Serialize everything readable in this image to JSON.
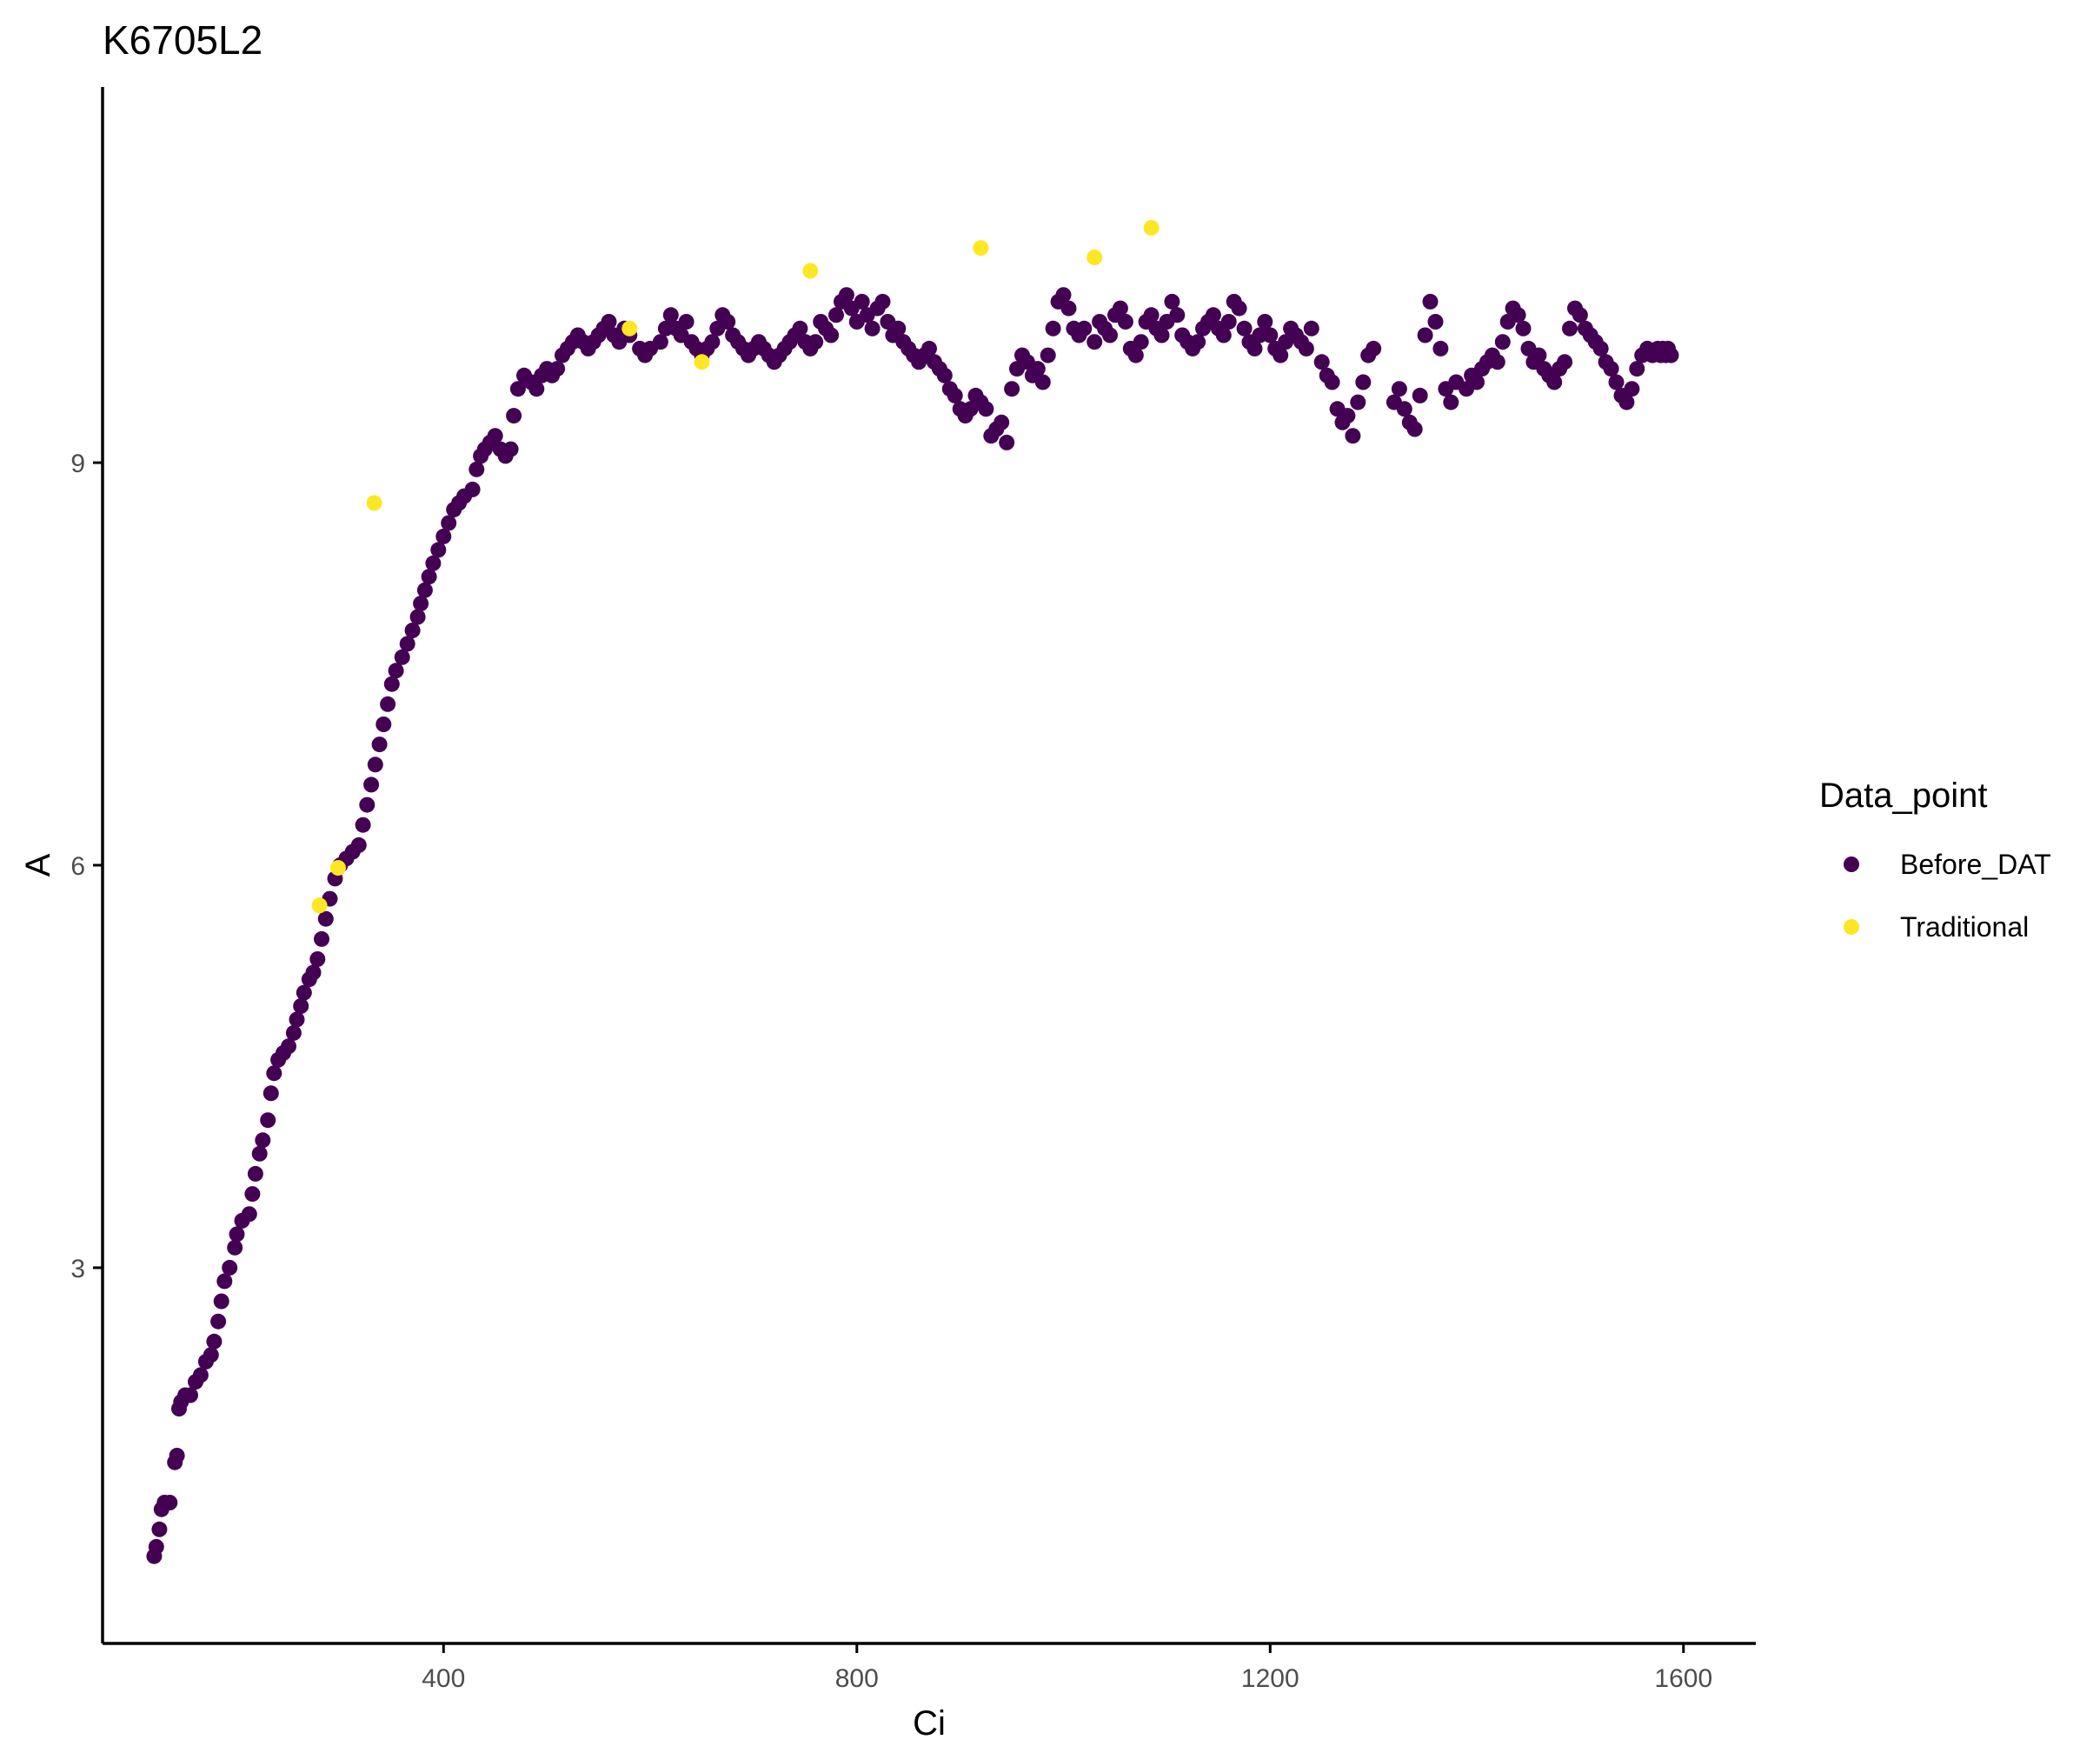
{
  "chart_data": {
    "type": "scatter",
    "title": "K6705L2",
    "xlabel": "Ci",
    "ylabel": "A",
    "xlim": [
      70,
      1670
    ],
    "ylim": [
      0.2,
      11.8
    ],
    "xticks": [
      400,
      800,
      1200,
      1600
    ],
    "yticks": [
      3,
      6,
      9
    ],
    "grid": false,
    "legend": {
      "title": "Data_point",
      "position": "right"
    },
    "series": [
      {
        "name": "Before_DAT",
        "color": "#440154",
        "points": [
          [
            120,
            0.85
          ],
          [
            122,
            0.92
          ],
          [
            125,
            1.05
          ],
          [
            127,
            1.2
          ],
          [
            130,
            1.25
          ],
          [
            135,
            1.25
          ],
          [
            140,
            1.55
          ],
          [
            142,
            1.6
          ],
          [
            144,
            1.95
          ],
          [
            146,
            2.0
          ],
          [
            150,
            2.05
          ],
          [
            155,
            2.05
          ],
          [
            160,
            2.15
          ],
          [
            165,
            2.2
          ],
          [
            170,
            2.3
          ],
          [
            175,
            2.35
          ],
          [
            178,
            2.45
          ],
          [
            182,
            2.6
          ],
          [
            185,
            2.75
          ],
          [
            188,
            2.9
          ],
          [
            193,
            3.0
          ],
          [
            198,
            3.15
          ],
          [
            200,
            3.25
          ],
          [
            205,
            3.35
          ],
          [
            212,
            3.4
          ],
          [
            215,
            3.55
          ],
          [
            218,
            3.7
          ],
          [
            222,
            3.85
          ],
          [
            225,
            3.95
          ],
          [
            230,
            4.1
          ],
          [
            233,
            4.3
          ],
          [
            236,
            4.45
          ],
          [
            240,
            4.55
          ],
          [
            245,
            4.6
          ],
          [
            250,
            4.65
          ],
          [
            255,
            4.75
          ],
          [
            258,
            4.85
          ],
          [
            262,
            4.95
          ],
          [
            265,
            5.05
          ],
          [
            270,
            5.15
          ],
          [
            274,
            5.2
          ],
          [
            278,
            5.3
          ],
          [
            282,
            5.45
          ],
          [
            286,
            5.6
          ],
          [
            290,
            5.75
          ],
          [
            295,
            5.9
          ],
          [
            300,
            6.0
          ],
          [
            306,
            6.05
          ],
          [
            312,
            6.1
          ],
          [
            318,
            6.15
          ],
          [
            322,
            6.3
          ],
          [
            326,
            6.45
          ],
          [
            330,
            6.6
          ],
          [
            334,
            6.75
          ],
          [
            338,
            6.9
          ],
          [
            342,
            7.05
          ],
          [
            346,
            7.2
          ],
          [
            350,
            7.35
          ],
          [
            354,
            7.45
          ],
          [
            360,
            7.55
          ],
          [
            365,
            7.65
          ],
          [
            370,
            7.75
          ],
          [
            375,
            7.85
          ],
          [
            378,
            7.95
          ],
          [
            382,
            8.05
          ],
          [
            386,
            8.15
          ],
          [
            390,
            8.25
          ],
          [
            395,
            8.35
          ],
          [
            400,
            8.45
          ],
          [
            405,
            8.55
          ],
          [
            410,
            8.65
          ],
          [
            415,
            8.7
          ],
          [
            420,
            8.75
          ],
          [
            428,
            8.8
          ],
          [
            432,
            8.95
          ],
          [
            436,
            9.05
          ],
          [
            440,
            9.1
          ],
          [
            445,
            9.15
          ],
          [
            450,
            9.2
          ],
          [
            455,
            9.1
          ],
          [
            460,
            9.05
          ],
          [
            465,
            9.1
          ],
          [
            468,
            9.35
          ],
          [
            472,
            9.55
          ],
          [
            478,
            9.65
          ],
          [
            485,
            9.6
          ],
          [
            490,
            9.55
          ],
          [
            495,
            9.65
          ],
          [
            500,
            9.7
          ],
          [
            505,
            9.65
          ],
          [
            510,
            9.7
          ],
          [
            515,
            9.8
          ],
          [
            520,
            9.85
          ],
          [
            525,
            9.9
          ],
          [
            530,
            9.95
          ],
          [
            535,
            9.9
          ],
          [
            540,
            9.85
          ],
          [
            545,
            9.9
          ],
          [
            550,
            9.95
          ],
          [
            555,
            10.0
          ],
          [
            560,
            10.05
          ],
          [
            565,
            9.95
          ],
          [
            570,
            9.9
          ],
          [
            575,
            10.0
          ],
          [
            580,
            9.95
          ],
          [
            590,
            9.85
          ],
          [
            595,
            9.8
          ],
          [
            600,
            9.85
          ],
          [
            610,
            9.9
          ],
          [
            615,
            10.0
          ],
          [
            620,
            10.1
          ],
          [
            625,
            10.0
          ],
          [
            630,
            9.95
          ],
          [
            635,
            10.05
          ],
          [
            640,
            9.9
          ],
          [
            645,
            9.85
          ],
          [
            650,
            9.8
          ],
          [
            655,
            9.85
          ],
          [
            660,
            9.9
          ],
          [
            665,
            10.0
          ],
          [
            670,
            10.1
          ],
          [
            675,
            10.05
          ],
          [
            680,
            9.95
          ],
          [
            685,
            9.9
          ],
          [
            690,
            9.85
          ],
          [
            695,
            9.8
          ],
          [
            700,
            9.85
          ],
          [
            705,
            9.9
          ],
          [
            710,
            9.85
          ],
          [
            715,
            9.8
          ],
          [
            720,
            9.75
          ],
          [
            725,
            9.8
          ],
          [
            730,
            9.85
          ],
          [
            735,
            9.9
          ],
          [
            740,
            9.95
          ],
          [
            745,
            10.0
          ],
          [
            750,
            9.9
          ],
          [
            755,
            9.85
          ],
          [
            760,
            9.9
          ],
          [
            765,
            10.05
          ],
          [
            770,
            10.0
          ],
          [
            775,
            9.95
          ],
          [
            780,
            10.1
          ],
          [
            785,
            10.2
          ],
          [
            790,
            10.25
          ],
          [
            795,
            10.15
          ],
          [
            800,
            10.05
          ],
          [
            805,
            10.2
          ],
          [
            810,
            10.1
          ],
          [
            815,
            10.0
          ],
          [
            820,
            10.15
          ],
          [
            825,
            10.2
          ],
          [
            830,
            10.05
          ],
          [
            835,
            9.95
          ],
          [
            840,
            10.0
          ],
          [
            845,
            9.9
          ],
          [
            850,
            9.85
          ],
          [
            855,
            9.8
          ],
          [
            860,
            9.75
          ],
          [
            865,
            9.8
          ],
          [
            870,
            9.85
          ],
          [
            875,
            9.75
          ],
          [
            880,
            9.7
          ],
          [
            885,
            9.65
          ],
          [
            890,
            9.55
          ],
          [
            895,
            9.5
          ],
          [
            900,
            9.4
          ],
          [
            905,
            9.35
          ],
          [
            910,
            9.4
          ],
          [
            915,
            9.5
          ],
          [
            920,
            9.45
          ],
          [
            925,
            9.4
          ],
          [
            930,
            9.2
          ],
          [
            935,
            9.25
          ],
          [
            940,
            9.3
          ],
          [
            945,
            9.15
          ],
          [
            950,
            9.55
          ],
          [
            955,
            9.7
          ],
          [
            960,
            9.8
          ],
          [
            965,
            9.75
          ],
          [
            970,
            9.65
          ],
          [
            975,
            9.7
          ],
          [
            980,
            9.6
          ],
          [
            985,
            9.8
          ],
          [
            990,
            10.0
          ],
          [
            995,
            10.2
          ],
          [
            1000,
            10.25
          ],
          [
            1005,
            10.15
          ],
          [
            1010,
            10.0
          ],
          [
            1015,
            9.95
          ],
          [
            1020,
            10.0
          ],
          [
            1030,
            9.9
          ],
          [
            1035,
            10.05
          ],
          [
            1040,
            10.0
          ],
          [
            1045,
            9.95
          ],
          [
            1050,
            10.1
          ],
          [
            1055,
            10.15
          ],
          [
            1060,
            10.05
          ],
          [
            1065,
            9.85
          ],
          [
            1070,
            9.8
          ],
          [
            1075,
            9.9
          ],
          [
            1080,
            10.05
          ],
          [
            1085,
            10.1
          ],
          [
            1090,
            10.0
          ],
          [
            1095,
            9.95
          ],
          [
            1100,
            10.05
          ],
          [
            1105,
            10.2
          ],
          [
            1110,
            10.1
          ],
          [
            1115,
            9.95
          ],
          [
            1120,
            9.9
          ],
          [
            1125,
            9.85
          ],
          [
            1130,
            9.9
          ],
          [
            1135,
            10.0
          ],
          [
            1140,
            10.05
          ],
          [
            1145,
            10.1
          ],
          [
            1150,
            10.0
          ],
          [
            1155,
            9.95
          ],
          [
            1160,
            10.05
          ],
          [
            1165,
            10.2
          ],
          [
            1170,
            10.15
          ],
          [
            1175,
            10.0
          ],
          [
            1180,
            9.9
          ],
          [
            1185,
            9.85
          ],
          [
            1190,
            9.95
          ],
          [
            1195,
            10.05
          ],
          [
            1200,
            9.95
          ],
          [
            1205,
            9.85
          ],
          [
            1210,
            9.8
          ],
          [
            1215,
            9.9
          ],
          [
            1220,
            10.0
          ],
          [
            1225,
            9.95
          ],
          [
            1230,
            9.9
          ],
          [
            1235,
            9.85
          ],
          [
            1240,
            10.0
          ],
          [
            1250,
            9.75
          ],
          [
            1255,
            9.65
          ],
          [
            1260,
            9.6
          ],
          [
            1265,
            9.4
          ],
          [
            1270,
            9.3
          ],
          [
            1275,
            9.35
          ],
          [
            1280,
            9.2
          ],
          [
            1285,
            9.45
          ],
          [
            1290,
            9.6
          ],
          [
            1295,
            9.8
          ],
          [
            1300,
            9.85
          ],
          [
            1320,
            9.45
          ],
          [
            1325,
            9.55
          ],
          [
            1330,
            9.4
          ],
          [
            1335,
            9.3
          ],
          [
            1340,
            9.25
          ],
          [
            1345,
            9.5
          ],
          [
            1350,
            9.95
          ],
          [
            1355,
            10.2
          ],
          [
            1360,
            10.05
          ],
          [
            1365,
            9.85
          ],
          [
            1370,
            9.55
          ],
          [
            1375,
            9.45
          ],
          [
            1380,
            9.6
          ],
          [
            1390,
            9.55
          ],
          [
            1395,
            9.65
          ],
          [
            1400,
            9.6
          ],
          [
            1405,
            9.7
          ],
          [
            1410,
            9.75
          ],
          [
            1415,
            9.8
          ],
          [
            1420,
            9.75
          ],
          [
            1425,
            9.9
          ],
          [
            1430,
            10.05
          ],
          [
            1435,
            10.15
          ],
          [
            1440,
            10.1
          ],
          [
            1445,
            10.0
          ],
          [
            1450,
            9.85
          ],
          [
            1455,
            9.75
          ],
          [
            1460,
            9.8
          ],
          [
            1465,
            9.7
          ],
          [
            1470,
            9.65
          ],
          [
            1475,
            9.6
          ],
          [
            1480,
            9.7
          ],
          [
            1485,
            9.75
          ],
          [
            1490,
            10.0
          ],
          [
            1495,
            10.15
          ],
          [
            1500,
            10.1
          ],
          [
            1505,
            10.0
          ],
          [
            1510,
            9.95
          ],
          [
            1515,
            9.9
          ],
          [
            1520,
            9.85
          ],
          [
            1525,
            9.75
          ],
          [
            1530,
            9.7
          ],
          [
            1535,
            9.6
          ],
          [
            1540,
            9.5
          ],
          [
            1545,
            9.45
          ],
          [
            1550,
            9.55
          ],
          [
            1555,
            9.7
          ],
          [
            1560,
            9.8
          ],
          [
            1565,
            9.85
          ],
          [
            1570,
            9.8
          ],
          [
            1575,
            9.85
          ],
          [
            1578,
            9.8
          ],
          [
            1580,
            9.85
          ],
          [
            1583,
            9.8
          ],
          [
            1585,
            9.85
          ],
          [
            1588,
            9.8
          ]
        ]
      },
      {
        "name": "Traditional",
        "color": "#fde725",
        "points": [
          [
            280,
            5.7
          ],
          [
            298,
            5.98
          ],
          [
            333,
            8.7
          ],
          [
            580,
            10.0
          ],
          [
            650,
            9.75
          ],
          [
            755,
            10.43
          ],
          [
            920,
            10.6
          ],
          [
            1030,
            10.53
          ],
          [
            1085,
            10.75
          ]
        ]
      }
    ]
  }
}
